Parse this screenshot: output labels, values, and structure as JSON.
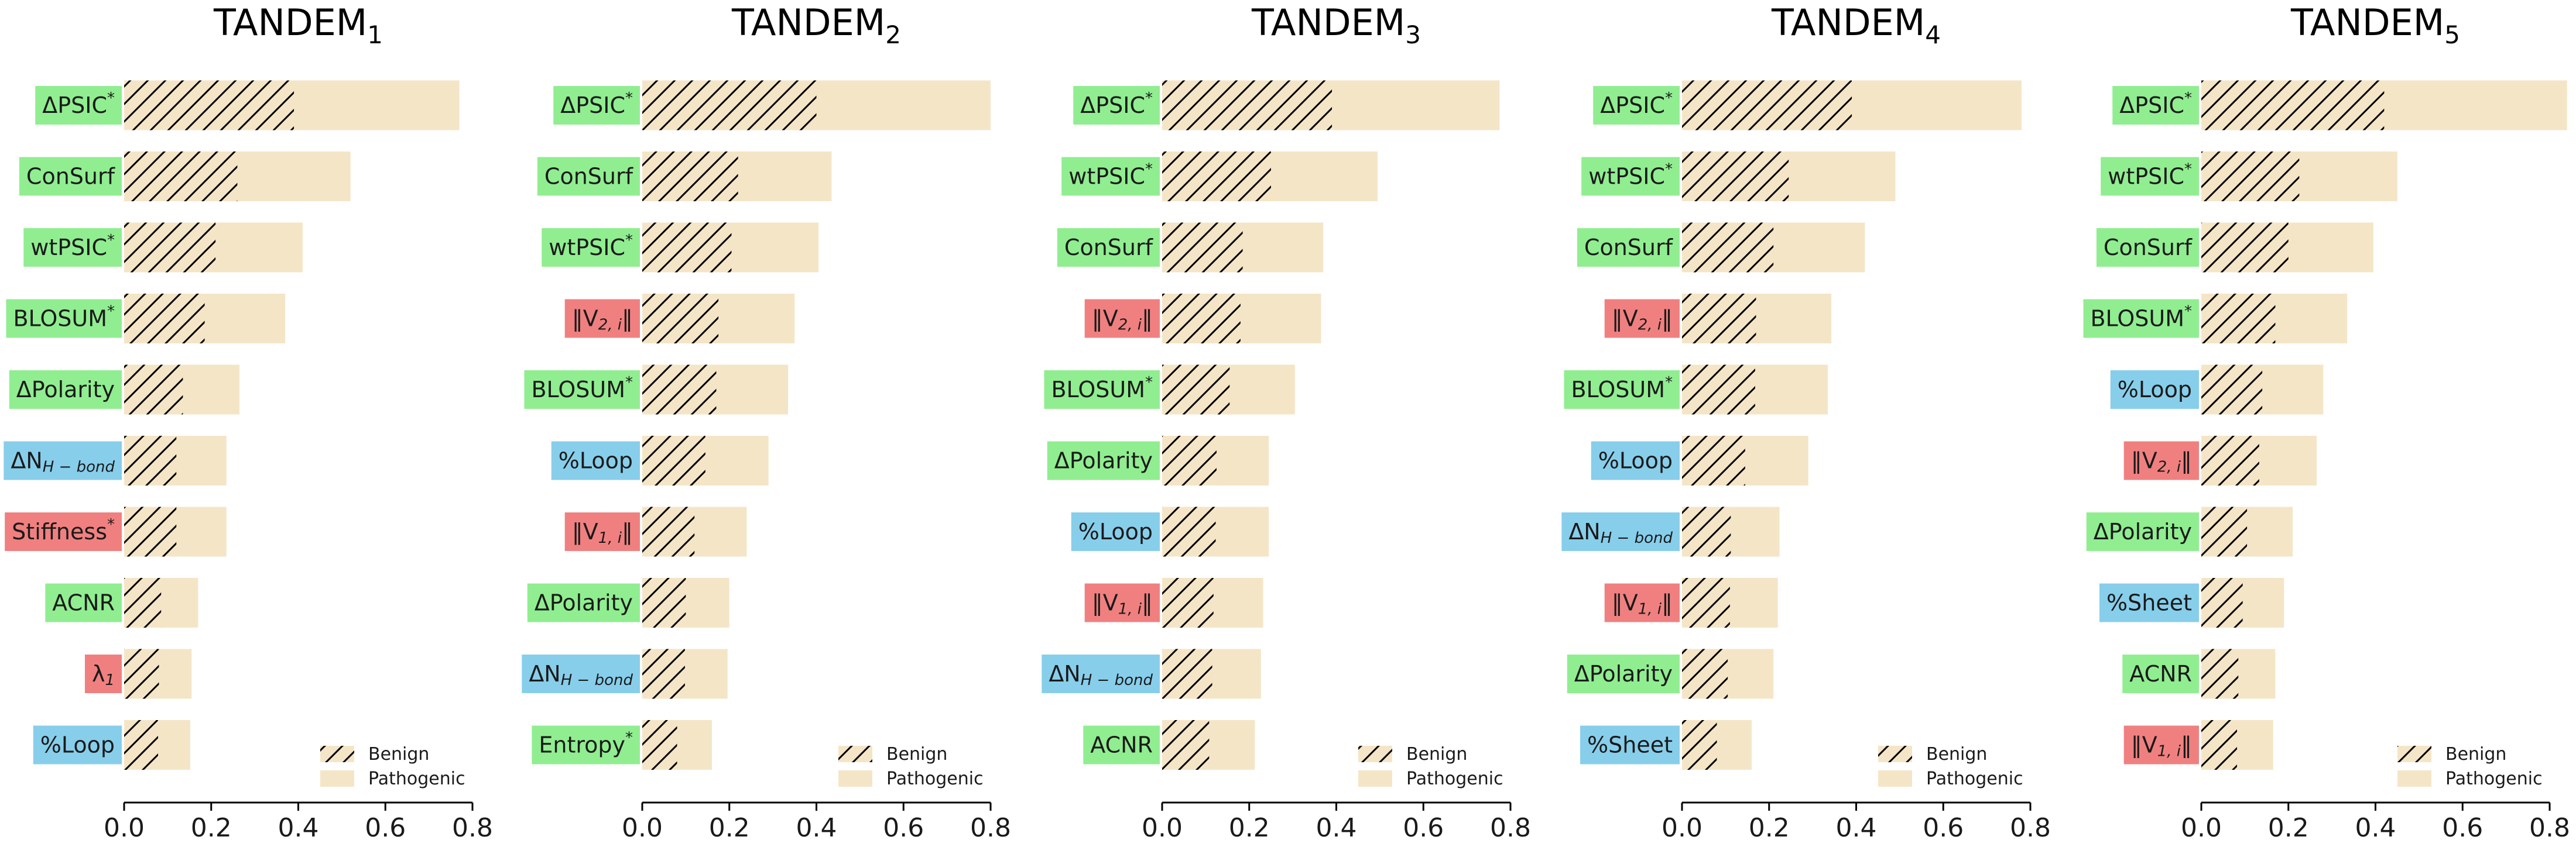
{
  "legend": {
    "benign": "Benign",
    "pathogenic": "Pathogenic"
  },
  "colors": {
    "pathogenic": "#f5e5c7",
    "hatch": "#000000",
    "label_green": "#90ee90",
    "label_blue": "#87ceeb",
    "label_red": "#f08080",
    "axis": "#000000",
    "text": "#1a1a1a"
  },
  "chart_data": [
    {
      "type": "bar",
      "orientation": "horizontal",
      "title": "TANDEM",
      "title_sub": "1",
      "xlim": [
        0,
        0.8
      ],
      "xticks": [
        "0.0",
        "0.2",
        "0.4",
        "0.6",
        "0.8"
      ],
      "features": [
        {
          "label": "ΔPSIC",
          "sup": "*",
          "color": "green",
          "benign": 0.39,
          "pathogenic": 0.77
        },
        {
          "label": "ConSurf",
          "color": "green",
          "benign": 0.26,
          "pathogenic": 0.52
        },
        {
          "label": "wtPSIC",
          "sup": "*",
          "color": "green",
          "benign": 0.21,
          "pathogenic": 0.41
        },
        {
          "label": "BLOSUM",
          "sup": "*",
          "color": "green",
          "benign": 0.185,
          "pathogenic": 0.37
        },
        {
          "label": "ΔPolarity",
          "color": "green",
          "benign": 0.135,
          "pathogenic": 0.265
        },
        {
          "label": "ΔN",
          "sub": "H − bond",
          "color": "blue",
          "benign": 0.12,
          "pathogenic": 0.235
        },
        {
          "label": "Stiffness",
          "sup": "*",
          "color": "red",
          "benign": 0.12,
          "pathogenic": 0.235
        },
        {
          "label": "ACNR",
          "color": "green",
          "benign": 0.085,
          "pathogenic": 0.17
        },
        {
          "label": "λ",
          "sub": "1",
          "color": "red",
          "benign": 0.08,
          "pathogenic": 0.155
        },
        {
          "label": "%Loop",
          "color": "blue",
          "benign": 0.078,
          "pathogenic": 0.152
        }
      ]
    },
    {
      "type": "bar",
      "orientation": "horizontal",
      "title": "TANDEM",
      "title_sub": "2",
      "xlim": [
        0,
        0.8
      ],
      "xticks": [
        "0.0",
        "0.2",
        "0.4",
        "0.6",
        "0.8"
      ],
      "features": [
        {
          "label": "ΔPSIC",
          "sup": "*",
          "color": "green",
          "benign": 0.4,
          "pathogenic": 0.8
        },
        {
          "label": "ConSurf",
          "color": "green",
          "benign": 0.22,
          "pathogenic": 0.435
        },
        {
          "label": "wtPSIC",
          "sup": "*",
          "color": "green",
          "benign": 0.205,
          "pathogenic": 0.405
        },
        {
          "label": "‖V",
          "sub": "2, i",
          "suffix": "‖",
          "color": "red",
          "benign": 0.175,
          "pathogenic": 0.35
        },
        {
          "label": "BLOSUM",
          "sup": "*",
          "color": "green",
          "benign": 0.17,
          "pathogenic": 0.335
        },
        {
          "label": "%Loop",
          "color": "blue",
          "benign": 0.145,
          "pathogenic": 0.29
        },
        {
          "label": "‖V",
          "sub": "1, i",
          "suffix": "‖",
          "color": "red",
          "benign": 0.12,
          "pathogenic": 0.24
        },
        {
          "label": "ΔPolarity",
          "color": "green",
          "benign": 0.1,
          "pathogenic": 0.2
        },
        {
          "label": "ΔN",
          "sub": "H − bond",
          "color": "blue",
          "benign": 0.098,
          "pathogenic": 0.196
        },
        {
          "label": "Entropy",
          "sup": "*",
          "color": "green",
          "benign": 0.08,
          "pathogenic": 0.16
        }
      ]
    },
    {
      "type": "bar",
      "orientation": "horizontal",
      "title": "TANDEM",
      "title_sub": "3",
      "xlim": [
        0,
        0.8
      ],
      "xticks": [
        "0.0",
        "0.2",
        "0.4",
        "0.6",
        "0.8"
      ],
      "features": [
        {
          "label": "ΔPSIC",
          "sup": "*",
          "color": "green",
          "benign": 0.39,
          "pathogenic": 0.775
        },
        {
          "label": "wtPSIC",
          "sup": "*",
          "color": "green",
          "benign": 0.25,
          "pathogenic": 0.495
        },
        {
          "label": "ConSurf",
          "color": "green",
          "benign": 0.185,
          "pathogenic": 0.37
        },
        {
          "label": "‖V",
          "sub": "2, i",
          "suffix": "‖",
          "color": "red",
          "benign": 0.18,
          "pathogenic": 0.365
        },
        {
          "label": "BLOSUM",
          "sup": "*",
          "color": "green",
          "benign": 0.155,
          "pathogenic": 0.305
        },
        {
          "label": "ΔPolarity",
          "color": "green",
          "benign": 0.125,
          "pathogenic": 0.245
        },
        {
          "label": "%Loop",
          "color": "blue",
          "benign": 0.123,
          "pathogenic": 0.245
        },
        {
          "label": "‖V",
          "sub": "1, i",
          "suffix": "‖",
          "color": "red",
          "benign": 0.118,
          "pathogenic": 0.232
        },
        {
          "label": "ΔN",
          "sub": "H − bond",
          "color": "blue",
          "benign": 0.115,
          "pathogenic": 0.227
        },
        {
          "label": "ACNR",
          "color": "green",
          "benign": 0.108,
          "pathogenic": 0.213
        }
      ]
    },
    {
      "type": "bar",
      "orientation": "horizontal",
      "title": "TANDEM",
      "title_sub": "4",
      "xlim": [
        0,
        0.8
      ],
      "xticks": [
        "0.0",
        "0.2",
        "0.4",
        "0.6",
        "0.8"
      ],
      "features": [
        {
          "label": "ΔPSIC",
          "sup": "*",
          "color": "green",
          "benign": 0.39,
          "pathogenic": 0.78
        },
        {
          "label": "wtPSIC",
          "sup": "*",
          "color": "green",
          "benign": 0.245,
          "pathogenic": 0.49
        },
        {
          "label": "ConSurf",
          "color": "green",
          "benign": 0.21,
          "pathogenic": 0.42
        },
        {
          "label": "‖V",
          "sub": "2, i",
          "suffix": "‖",
          "color": "red",
          "benign": 0.17,
          "pathogenic": 0.343
        },
        {
          "label": "BLOSUM",
          "sup": "*",
          "color": "green",
          "benign": 0.168,
          "pathogenic": 0.335
        },
        {
          "label": "%Loop",
          "color": "blue",
          "benign": 0.145,
          "pathogenic": 0.29
        },
        {
          "label": "ΔN",
          "sub": "H − bond",
          "color": "blue",
          "benign": 0.112,
          "pathogenic": 0.224
        },
        {
          "label": "‖V",
          "sub": "1, i",
          "suffix": "‖",
          "color": "red",
          "benign": 0.11,
          "pathogenic": 0.22
        },
        {
          "label": "ΔPolarity",
          "color": "green",
          "benign": 0.105,
          "pathogenic": 0.21
        },
        {
          "label": "%Sheet",
          "color": "blue",
          "benign": 0.08,
          "pathogenic": 0.16
        }
      ]
    },
    {
      "type": "bar",
      "orientation": "horizontal",
      "title": "TANDEM",
      "title_sub": "5",
      "xlim": [
        0,
        0.8
      ],
      "xticks": [
        "0.0",
        "0.2",
        "0.4",
        "0.6",
        "0.8"
      ],
      "features": [
        {
          "label": "ΔPSIC",
          "sup": "*",
          "color": "green",
          "benign": 0.42,
          "pathogenic": 0.84
        },
        {
          "label": "wtPSIC",
          "sup": "*",
          "color": "green",
          "benign": 0.225,
          "pathogenic": 0.45
        },
        {
          "label": "ConSurf",
          "color": "green",
          "benign": 0.2,
          "pathogenic": 0.395
        },
        {
          "label": "BLOSUM",
          "sup": "*",
          "color": "green",
          "benign": 0.17,
          "pathogenic": 0.335
        },
        {
          "label": "%Loop",
          "color": "blue",
          "benign": 0.14,
          "pathogenic": 0.28
        },
        {
          "label": "‖V",
          "sub": "2, i",
          "suffix": "‖",
          "color": "red",
          "benign": 0.133,
          "pathogenic": 0.265
        },
        {
          "label": "ΔPolarity",
          "color": "green",
          "benign": 0.105,
          "pathogenic": 0.21
        },
        {
          "label": "%Sheet",
          "color": "blue",
          "benign": 0.095,
          "pathogenic": 0.19
        },
        {
          "label": "ACNR",
          "color": "green",
          "benign": 0.085,
          "pathogenic": 0.17
        },
        {
          "label": "‖V",
          "sub": "1, i",
          "suffix": "‖",
          "color": "red",
          "benign": 0.082,
          "pathogenic": 0.165
        }
      ]
    }
  ]
}
